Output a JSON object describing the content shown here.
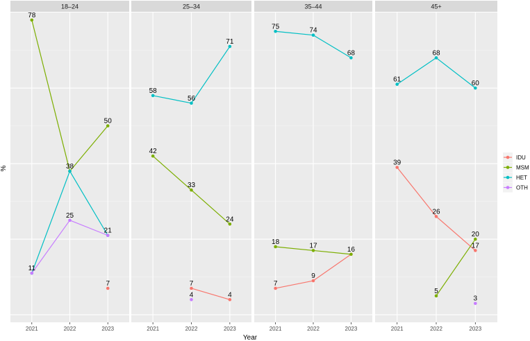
{
  "chart_data": {
    "type": "line",
    "xlabel": "Year",
    "ylabel": "%",
    "x": [
      "2021",
      "2022",
      "2023"
    ],
    "ylim": [
      -2,
      80
    ],
    "grid": true,
    "legend_position": "right",
    "series_colors": {
      "IDU": "#F8766D",
      "MSM": "#7CAE00",
      "HET": "#00BFC4",
      "OTH": "#C77CFF"
    },
    "legend": [
      "IDU",
      "MSM",
      "HET",
      "OTH"
    ],
    "panels": [
      {
        "title": "18–24",
        "series": [
          {
            "name": "IDU",
            "values": [
              null,
              null,
              7
            ]
          },
          {
            "name": "MSM",
            "values": [
              78,
              38,
              50
            ]
          },
          {
            "name": "HET",
            "values": [
              11,
              38,
              21
            ]
          },
          {
            "name": "OTH",
            "values": [
              11,
              25,
              21
            ]
          }
        ],
        "labels": [
          {
            "year": "2021",
            "value": 78,
            "text": "78"
          },
          {
            "year": "2022",
            "value": 38,
            "text": "38"
          },
          {
            "year": "2023",
            "value": 50,
            "text": "50"
          },
          {
            "year": "2021",
            "value": 11,
            "text": "11"
          },
          {
            "year": "2022",
            "value": 25,
            "text": "25"
          },
          {
            "year": "2023",
            "value": 21,
            "text": "21"
          },
          {
            "year": "2023",
            "value": 7,
            "text": "7"
          }
        ]
      },
      {
        "title": "25–34",
        "series": [
          {
            "name": "IDU",
            "values": [
              null,
              7,
              4
            ]
          },
          {
            "name": "MSM",
            "values": [
              42,
              33,
              24
            ]
          },
          {
            "name": "HET",
            "values": [
              58,
              56,
              71
            ]
          },
          {
            "name": "OTH",
            "values": [
              null,
              4,
              null
            ]
          }
        ],
        "labels": [
          {
            "year": "2021",
            "value": 58,
            "text": "58"
          },
          {
            "year": "2022",
            "value": 56,
            "text": "56"
          },
          {
            "year": "2023",
            "value": 71,
            "text": "71"
          },
          {
            "year": "2021",
            "value": 42,
            "text": "42"
          },
          {
            "year": "2022",
            "value": 33,
            "text": "33"
          },
          {
            "year": "2023",
            "value": 24,
            "text": "24"
          },
          {
            "year": "2022",
            "value": 7,
            "text": "7"
          },
          {
            "year": "2023",
            "value": 4,
            "text": "4"
          },
          {
            "year": "2022",
            "value": 4,
            "text": "4"
          }
        ]
      },
      {
        "title": "35–44",
        "series": [
          {
            "name": "IDU",
            "values": [
              7,
              9,
              16
            ]
          },
          {
            "name": "MSM",
            "values": [
              18,
              17,
              16
            ]
          },
          {
            "name": "HET",
            "values": [
              75,
              74,
              68
            ]
          },
          {
            "name": "OTH",
            "values": [
              null,
              null,
              null
            ]
          }
        ],
        "labels": [
          {
            "year": "2021",
            "value": 75,
            "text": "75"
          },
          {
            "year": "2022",
            "value": 74,
            "text": "74"
          },
          {
            "year": "2023",
            "value": 68,
            "text": "68"
          },
          {
            "year": "2021",
            "value": 18,
            "text": "18"
          },
          {
            "year": "2022",
            "value": 17,
            "text": "17"
          },
          {
            "year": "2023",
            "value": 16,
            "text": "16"
          },
          {
            "year": "2021",
            "value": 7,
            "text": "7"
          },
          {
            "year": "2022",
            "value": 9,
            "text": "9"
          }
        ]
      },
      {
        "title": "45+",
        "series": [
          {
            "name": "IDU",
            "values": [
              39,
              26,
              17
            ]
          },
          {
            "name": "MSM",
            "values": [
              null,
              5,
              20
            ]
          },
          {
            "name": "HET",
            "values": [
              61,
              68,
              60
            ]
          },
          {
            "name": "OTH",
            "values": [
              null,
              null,
              3
            ]
          }
        ],
        "labels": [
          {
            "year": "2021",
            "value": 61,
            "text": "61"
          },
          {
            "year": "2022",
            "value": 68,
            "text": "68"
          },
          {
            "year": "2023",
            "value": 60,
            "text": "60"
          },
          {
            "year": "2021",
            "value": 39,
            "text": "39"
          },
          {
            "year": "2022",
            "value": 26,
            "text": "26"
          },
          {
            "year": "2023",
            "value": 17,
            "text": "17"
          },
          {
            "year": "2023",
            "value": 20,
            "text": "20"
          },
          {
            "year": "2022",
            "value": 5,
            "text": "5"
          },
          {
            "year": "2023",
            "value": 3,
            "text": "3"
          }
        ]
      }
    ]
  }
}
